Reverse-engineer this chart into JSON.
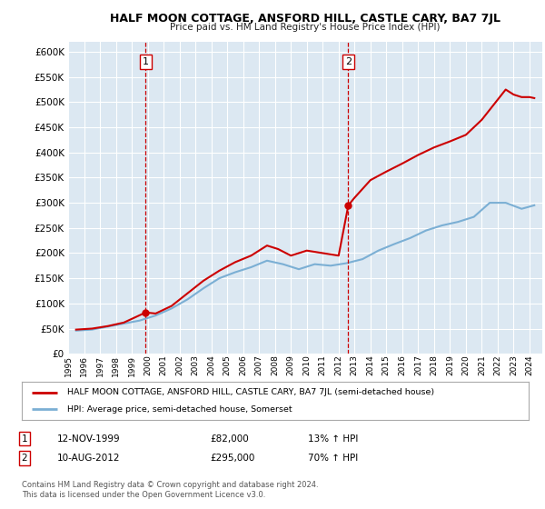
{
  "title": "HALF MOON COTTAGE, ANSFORD HILL, CASTLE CARY, BA7 7JL",
  "subtitle": "Price paid vs. HM Land Registry's House Price Index (HPI)",
  "ylabel_ticks": [
    0,
    50000,
    100000,
    150000,
    200000,
    250000,
    300000,
    350000,
    400000,
    450000,
    500000,
    550000,
    600000
  ],
  "ylim": [
    0,
    620000
  ],
  "xlim_start": 1995.0,
  "xlim_end": 2024.8,
  "plot_bg_color": "#dce8f2",
  "grid_color": "#ffffff",
  "sale1_x": 1999.87,
  "sale1_y": 82000,
  "sale1_label": "1",
  "sale2_x": 2012.61,
  "sale2_y": 295000,
  "sale2_label": "2",
  "legend_entries": [
    "HALF MOON COTTAGE, ANSFORD HILL, CASTLE CARY, BA7 7JL (semi-detached house)",
    "HPI: Average price, semi-detached house, Somerset"
  ],
  "annotation1": [
    "1",
    "12-NOV-1999",
    "£82,000",
    "13% ↑ HPI"
  ],
  "annotation2": [
    "2",
    "10-AUG-2012",
    "£295,000",
    "70% ↑ HPI"
  ],
  "footnote": "Contains HM Land Registry data © Crown copyright and database right 2024.\nThis data is licensed under the Open Government Licence v3.0.",
  "line_color_red": "#cc0000",
  "line_color_blue": "#7bafd4",
  "hpi_years": [
    1995.5,
    1996.5,
    1997.5,
    1998.5,
    1999.5,
    2000.5,
    2001.5,
    2002.5,
    2003.5,
    2004.5,
    2005.5,
    2006.5,
    2007.5,
    2008.5,
    2009.5,
    2010.5,
    2011.5,
    2012.5,
    2013.5,
    2014.5,
    2015.5,
    2016.5,
    2017.5,
    2018.5,
    2019.5,
    2020.5,
    2021.5,
    2022.5,
    2023.5,
    2024.3
  ],
  "hpi_values": [
    46000,
    48000,
    54000,
    60000,
    66000,
    76000,
    90000,
    108000,
    130000,
    150000,
    162000,
    172000,
    185000,
    178000,
    168000,
    178000,
    175000,
    180000,
    188000,
    205000,
    218000,
    230000,
    245000,
    255000,
    262000,
    272000,
    300000,
    300000,
    288000,
    295000
  ],
  "prop_years": [
    1995.5,
    1996.5,
    1997.5,
    1998.5,
    1999.87,
    2000.5,
    2001.5,
    2002.5,
    2003.5,
    2004.5,
    2005.5,
    2006.5,
    2007.5,
    2008.2,
    2009.0,
    2010.0,
    2011.0,
    2012.0,
    2012.61,
    2013.0,
    2014.0,
    2015.0,
    2016.0,
    2017.0,
    2018.0,
    2019.0,
    2020.0,
    2021.0,
    2022.0,
    2022.5,
    2023.0,
    2023.5,
    2024.0,
    2024.3
  ],
  "prop_values": [
    48000,
    50000,
    55000,
    62000,
    82000,
    80000,
    95000,
    120000,
    145000,
    165000,
    182000,
    195000,
    215000,
    208000,
    195000,
    205000,
    200000,
    195000,
    295000,
    310000,
    345000,
    362000,
    378000,
    395000,
    410000,
    422000,
    435000,
    465000,
    505000,
    525000,
    515000,
    510000,
    510000,
    508000
  ]
}
